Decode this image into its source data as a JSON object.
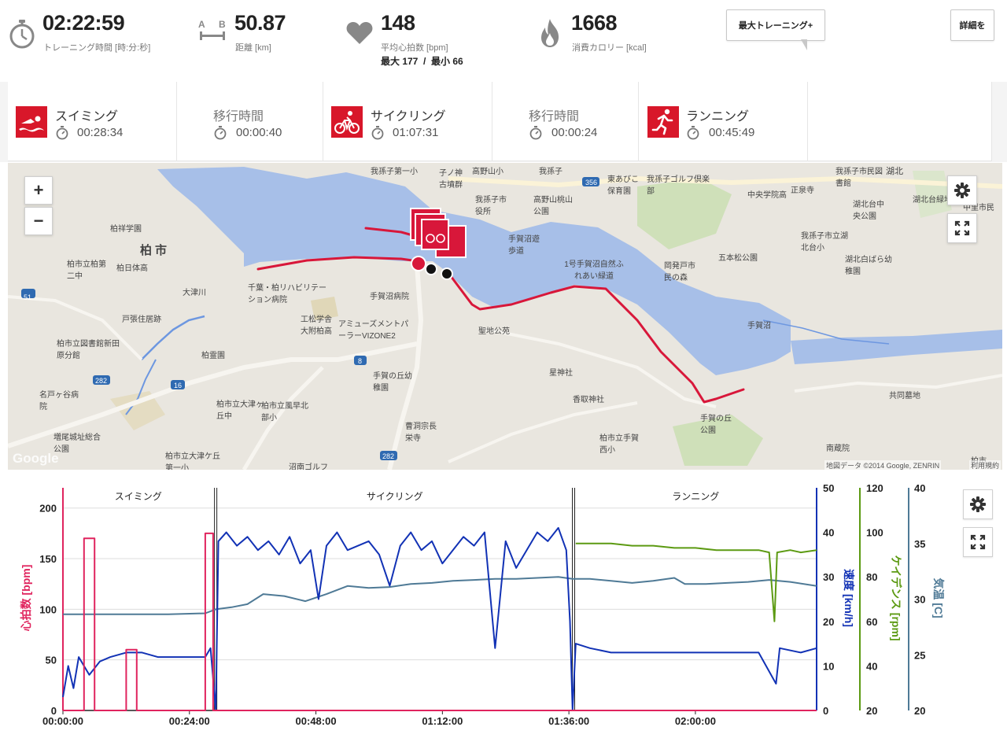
{
  "summary": {
    "duration": {
      "value": "02:22:59",
      "label": "トレーニング時間 [時:分:秒]"
    },
    "distance": {
      "value": "50.87",
      "label": "距離 [km]",
      "icon_a": "A",
      "icon_b": "B"
    },
    "heart_rate": {
      "value": "148",
      "label": "平均心拍数 [bpm]",
      "minmax": "最大 177  /  最小 66"
    },
    "calories": {
      "value": "1668",
      "label": "消費カロリー [kcal]"
    },
    "max_training_button": "最大トレーニング+",
    "details_button": "詳細を",
    "icons": [
      "stopwatch-icon",
      "distance-icon",
      "heart-icon",
      "flame-icon"
    ]
  },
  "segments": [
    {
      "name": "スイミング",
      "time": "00:28:34",
      "icon": "swim-icon"
    },
    {
      "name": "移行時間",
      "time": "00:00:40",
      "icon": ""
    },
    {
      "name": "サイクリング",
      "time": "01:07:31",
      "icon": "bike-icon"
    },
    {
      "name": "移行時間",
      "time": "00:00:24",
      "icon": ""
    },
    {
      "name": "ランニング",
      "time": "00:45:49",
      "icon": "run-icon"
    }
  ],
  "map": {
    "zoom_in": "+",
    "zoom_out": "−",
    "google": "Google",
    "attribution": "地図データ ©2014 Google, ZENRIN",
    "terms": "利用規約",
    "route_color": "#d8173a",
    "water_color": "#a7bfe8",
    "labels": [
      "柏市",
      "柏祥学園",
      "柏市立柏第二中",
      "柏日体高",
      "大津川",
      "戸張住居跡",
      "柏市立図書館新田原分館",
      "柏霊園",
      "名戸ヶ谷病院",
      "増尾城址総合公園",
      "柏市立大津ヶ丘中",
      "柏市立風早北部小",
      "柏市立大津ケ丘第一小",
      "沼南ゴルフ",
      "曹洞宗長栄寺",
      "手賀の丘幼稚園",
      "アミューズメントパーラーVIZONE2",
      "工松学舎大附柏高",
      "千葉・柏リハビリテーション病院",
      "手賀沼病院",
      "聖地公苑",
      "星神社",
      "香取神社",
      "柏市立手賀西小",
      "手賀の丘公園",
      "南蔵院",
      "共同墓地",
      "手賀沼",
      "五本松公園",
      "岡発戸市民の森",
      "1号手賀沼自然ふれあい緑道",
      "手賀沼遊歩道",
      "高野山桃山公園",
      "我孫子市役所",
      "我孫子第一小",
      "子ノ神古墳群",
      "高野山小",
      "我孫子",
      "東あびこ保育園",
      "我孫子ゴルフ倶楽部",
      "中央学院高",
      "正泉寺",
      "我孫子市民図書館",
      "湖北",
      "湖北台緑地",
      "湖北台中央公園",
      "我孫子市立湖北台小",
      "湖北白ばら幼稚園",
      "中里市民",
      "柏市",
      "356",
      "51",
      "16",
      "282",
      "8"
    ]
  },
  "chart": {
    "left_axis": {
      "label": "心拍数 [bpm]",
      "color": "#e0245e",
      "ticks": [
        "200",
        "150",
        "100",
        "50",
        "0"
      ]
    },
    "speed_axis": {
      "label": "速度 [km/h]",
      "color": "#1232b5",
      "ticks": [
        "50",
        "40",
        "30",
        "20",
        "10",
        "0"
      ]
    },
    "cadence_axis": {
      "label": "ケイデンス [rpm]",
      "color": "#5c9a12",
      "ticks": [
        "120",
        "100",
        "80",
        "60",
        "40",
        "20"
      ]
    },
    "temp_axis": {
      "label": "気温 [C]",
      "color": "#4f7a96",
      "ticks": [
        "40",
        "35",
        "30",
        "25",
        "20"
      ]
    },
    "x_ticks": [
      "00:00:00",
      "00:24:00",
      "00:48:00",
      "01:12:00",
      "01:36:00",
      "02:00:00"
    ],
    "sections": [
      {
        "name": "スイミング",
        "start_min": 0,
        "end_min": 28.6
      },
      {
        "name": "サイクリング",
        "start_min": 29.2,
        "end_min": 96.7
      },
      {
        "name": "ランニング",
        "start_min": 97.1,
        "end_min": 143
      }
    ]
  },
  "chart_data": {
    "type": "line",
    "x_unit": "minutes",
    "x_range": [
      0,
      143
    ],
    "series": [
      {
        "name": "心拍数 [bpm]",
        "axis": "left",
        "ylim": [
          0,
          220
        ],
        "color": "#e0245e",
        "points": [
          [
            0,
            0
          ],
          [
            4,
            0
          ],
          [
            4,
            170
          ],
          [
            6,
            170
          ],
          [
            6,
            0
          ],
          [
            12,
            0
          ],
          [
            12,
            60
          ],
          [
            14,
            60
          ],
          [
            14,
            0
          ],
          [
            27,
            0
          ],
          [
            27,
            175
          ],
          [
            28.5,
            175
          ],
          [
            28.5,
            0
          ],
          [
            143,
            0
          ]
        ]
      },
      {
        "name": "速度 [km/h]",
        "axis": "speed",
        "ylim": [
          0,
          50
        ],
        "color": "#1232b5",
        "points": [
          [
            0,
            3
          ],
          [
            1,
            10
          ],
          [
            2,
            5
          ],
          [
            3,
            12
          ],
          [
            5,
            8
          ],
          [
            7,
            11
          ],
          [
            9,
            12
          ],
          [
            12,
            13
          ],
          [
            15,
            13
          ],
          [
            18,
            12
          ],
          [
            21,
            12
          ],
          [
            24,
            12
          ],
          [
            27,
            12
          ],
          [
            28,
            14
          ],
          [
            29,
            0
          ],
          [
            29.5,
            38
          ],
          [
            31,
            40
          ],
          [
            33,
            37
          ],
          [
            35,
            39
          ],
          [
            37,
            36
          ],
          [
            39,
            38
          ],
          [
            41,
            35
          ],
          [
            43,
            39
          ],
          [
            45,
            33
          ],
          [
            47,
            36
          ],
          [
            48.5,
            25
          ],
          [
            50,
            37
          ],
          [
            52,
            40
          ],
          [
            54,
            36
          ],
          [
            56,
            37
          ],
          [
            58,
            38
          ],
          [
            60,
            35
          ],
          [
            62,
            28
          ],
          [
            64,
            37
          ],
          [
            66,
            40
          ],
          [
            68,
            36
          ],
          [
            70,
            38
          ],
          [
            72,
            33
          ],
          [
            74,
            36
          ],
          [
            76,
            39
          ],
          [
            78,
            37
          ],
          [
            80,
            40
          ],
          [
            82,
            14
          ],
          [
            84,
            38
          ],
          [
            86,
            32
          ],
          [
            88,
            36
          ],
          [
            90,
            40
          ],
          [
            92,
            38
          ],
          [
            94,
            41
          ],
          [
            95.5,
            36
          ],
          [
            96.2,
            20
          ],
          [
            96.7,
            0
          ],
          [
            97.3,
            15
          ],
          [
            100,
            14
          ],
          [
            104,
            13
          ],
          [
            108,
            13
          ],
          [
            112,
            13
          ],
          [
            116,
            13
          ],
          [
            120,
            13
          ],
          [
            124,
            13
          ],
          [
            128,
            13
          ],
          [
            132,
            13
          ],
          [
            135.3,
            6
          ],
          [
            136,
            14
          ],
          [
            140,
            13
          ],
          [
            143,
            14
          ]
        ]
      },
      {
        "name": "ケイデンス [rpm]",
        "axis": "cadence",
        "ylim": [
          20,
          120
        ],
        "color": "#5c9a12",
        "points": [
          [
            97.3,
            95
          ],
          [
            100,
            95
          ],
          [
            104,
            95
          ],
          [
            108,
            94
          ],
          [
            112,
            94
          ],
          [
            116,
            93
          ],
          [
            120,
            93
          ],
          [
            124,
            92
          ],
          [
            128,
            92
          ],
          [
            132,
            92
          ],
          [
            134,
            91
          ],
          [
            135,
            60
          ],
          [
            135.5,
            91
          ],
          [
            138,
            92
          ],
          [
            140,
            91
          ],
          [
            143,
            92
          ]
        ]
      },
      {
        "name": "気温 [C]",
        "axis": "temp",
        "ylim": [
          20,
          42
        ],
        "color": "#4f7a96",
        "points": [
          [
            0,
            29.5
          ],
          [
            10,
            29.5
          ],
          [
            20,
            29.5
          ],
          [
            27,
            29.6
          ],
          [
            29,
            30
          ],
          [
            32,
            30.2
          ],
          [
            35,
            30.5
          ],
          [
            38,
            31.5
          ],
          [
            42,
            31.3
          ],
          [
            46,
            30.8
          ],
          [
            50,
            31.5
          ],
          [
            54,
            32.3
          ],
          [
            58,
            32.1
          ],
          [
            62,
            32.2
          ],
          [
            66,
            32.5
          ],
          [
            70,
            32.6
          ],
          [
            74,
            32.8
          ],
          [
            78,
            32.9
          ],
          [
            82,
            33.0
          ],
          [
            86,
            33.0
          ],
          [
            90,
            33.1
          ],
          [
            94,
            33.2
          ],
          [
            96.7,
            33.0
          ],
          [
            100,
            33.0
          ],
          [
            104,
            32.8
          ],
          [
            108,
            32.6
          ],
          [
            112,
            32.8
          ],
          [
            116,
            33.1
          ],
          [
            118,
            32.5
          ],
          [
            122,
            32.5
          ],
          [
            126,
            32.6
          ],
          [
            130,
            32.7
          ],
          [
            134,
            32.9
          ],
          [
            138,
            32.7
          ],
          [
            143,
            32.3
          ]
        ]
      }
    ]
  }
}
